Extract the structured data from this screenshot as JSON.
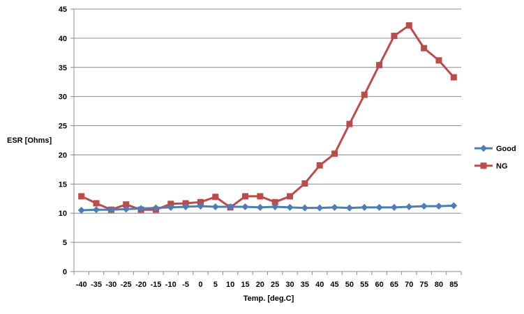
{
  "chart_data": {
    "type": "line",
    "title": "",
    "xlabel": "Temp. [deg.C]",
    "ylabel": "ESR [Ohms]",
    "ylim": [
      0,
      45
    ],
    "yticks": [
      0,
      5,
      10,
      15,
      20,
      25,
      30,
      35,
      40,
      45
    ],
    "grid": "horizontal",
    "legend_position": "right",
    "categories": [
      "-40",
      "-35",
      "-30",
      "-25",
      "-20",
      "-15",
      "-10",
      "-5",
      "0",
      "5",
      "10",
      "15",
      "20",
      "25",
      "30",
      "35",
      "40",
      "45",
      "50",
      "55",
      "60",
      "65",
      "70",
      "75",
      "80",
      "85"
    ],
    "series": [
      {
        "name": "Good",
        "color": "#4a7ebb",
        "marker": "diamond",
        "values": [
          10.5,
          10.6,
          10.6,
          10.7,
          10.8,
          10.9,
          11.0,
          11.1,
          11.2,
          11.1,
          11.1,
          11.1,
          11.0,
          11.1,
          11.0,
          10.9,
          10.9,
          11.0,
          10.9,
          11.0,
          11.0,
          11.0,
          11.1,
          11.2,
          11.2,
          11.3
        ]
      },
      {
        "name": "NG",
        "color": "#be4b48",
        "marker": "square",
        "values": [
          12.9,
          11.7,
          10.6,
          11.5,
          10.6,
          10.6,
          11.6,
          11.7,
          11.9,
          12.8,
          11.0,
          12.9,
          12.9,
          11.9,
          12.9,
          15.1,
          18.2,
          20.2,
          25.3,
          30.3,
          35.4,
          40.4,
          42.2,
          38.3,
          36.2,
          33.3
        ]
      }
    ]
  }
}
